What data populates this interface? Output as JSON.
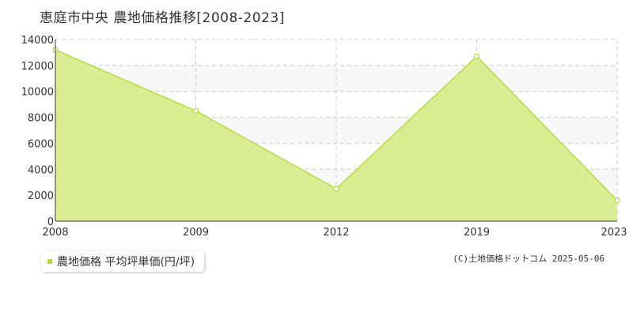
{
  "chart_data": {
    "type": "area",
    "title": "恵庭市中央 農地価格推移[2008-2023]",
    "categories": [
      "2008",
      "2009",
      "2012",
      "2019",
      "2023"
    ],
    "series": [
      {
        "name": "農地価格 平均坪単価(円/坪)",
        "values": [
          13200,
          8500,
          2500,
          12700,
          1600
        ]
      }
    ],
    "yticks": [
      0,
      2000,
      4000,
      6000,
      8000,
      10000,
      12000,
      14000
    ],
    "ylim": [
      0,
      14000
    ],
    "xlabel": "",
    "ylabel": "",
    "grid": true,
    "legend_position": "bottom-left",
    "colors": {
      "fill": "#dbed93",
      "line": "#b5dc3c",
      "band": "#f8f8fa",
      "grid": "#cccccc"
    }
  },
  "legend": {
    "label": "農地価格 平均坪単価(円/坪)"
  },
  "footer": {
    "copyright": "(C)土地価格ドットコム 2025-05-06"
  }
}
